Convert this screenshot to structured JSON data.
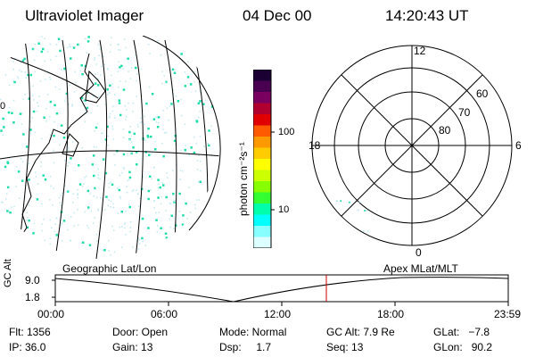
{
  "header": {
    "title": "Ultraviolet Imager",
    "date": "04 Dec 00",
    "time": "14:20:43 UT"
  },
  "geo_panel": {
    "label": "Geographic Lat/Lon",
    "edge_label": "0"
  },
  "colorbar": {
    "unit_label": "photon cm⁻²s⁻¹",
    "ticks": [
      "100",
      "10"
    ],
    "colors": [
      "#1a0033",
      "#4a0050",
      "#7a0060",
      "#b00030",
      "#e00000",
      "#ff5a00",
      "#ff9900",
      "#ffcc00",
      "#ffff00",
      "#ccff00",
      "#88ff00",
      "#33ff33",
      "#00ffaa",
      "#00ffff",
      "#88ffff",
      "#ddffff"
    ]
  },
  "polar_panel": {
    "label": "Apex MLat/MLT",
    "mlt_labels": {
      "top": "12",
      "left": "18",
      "right": "6",
      "bottom": "0"
    },
    "lat_labels": [
      "60",
      "70",
      "80"
    ]
  },
  "timeline": {
    "y_axis_label": "GC Alt",
    "y_ticks": [
      "9.0",
      "1.8"
    ],
    "x_ticks": [
      "00:00",
      "06:00",
      "12:00",
      "18:00",
      "23:59"
    ],
    "marker_color": "#cc0000"
  },
  "status": {
    "flt": "Flt: 1356",
    "ip": "IP: 36.0",
    "door": "Door: Open",
    "gain": "Gain: 13",
    "mode": "Mode: Normal",
    "dsp": "Dsp:     1.7",
    "gcalt": "GC Alt: 7.9 Re",
    "seq": "Seq: 13",
    "glat": "GLat:   −7.8",
    "glon": "GLon:   90.2"
  },
  "speckle_color": "#22ddaa"
}
